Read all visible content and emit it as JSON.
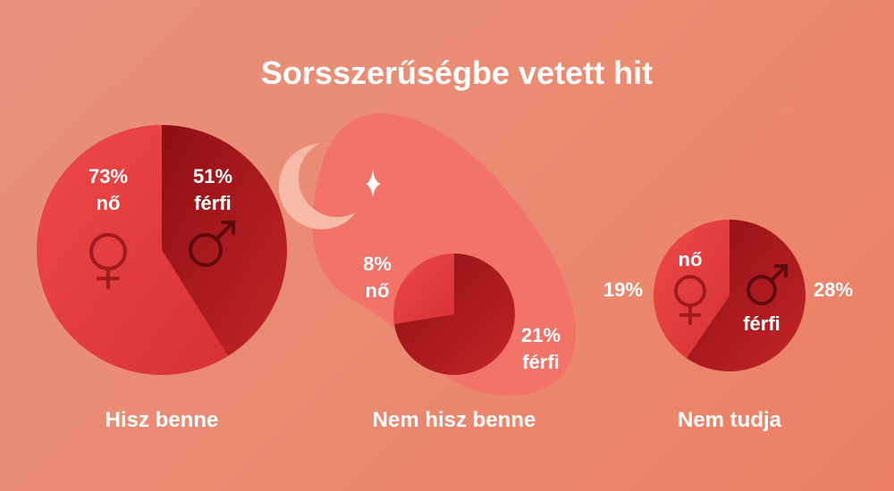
{
  "colors": {
    "background": "#ea8b72",
    "blob": "#f0736a",
    "female_slice": "#e33d3f",
    "male_slice": "#a8161b",
    "text": "#ffffff",
    "icon": "#a11a1e"
  },
  "chart_data": {
    "type": "pie",
    "title": "Sorsszerűségbe vetett hit",
    "groups": [
      {
        "label": "Hisz benne",
        "female": {
          "percent": 73,
          "percent_label": "73%",
          "label": "nő"
        },
        "male": {
          "percent": 51,
          "percent_label": "51%",
          "label": "férfi"
        }
      },
      {
        "label": "Nem hisz benne",
        "female": {
          "percent": 8,
          "percent_label": "8%",
          "label": "nő"
        },
        "male": {
          "percent": 21,
          "percent_label": "21%",
          "label": "férfi"
        }
      },
      {
        "label": "Nem tudja",
        "female": {
          "percent": 19,
          "percent_label": "19%",
          "label": "nő"
        },
        "male": {
          "percent": 28,
          "percent_label": "28%",
          "label": "férfi"
        }
      }
    ],
    "icons": [
      "female-symbol-icon",
      "male-symbol-icon",
      "moon-icon",
      "star-icon"
    ]
  }
}
